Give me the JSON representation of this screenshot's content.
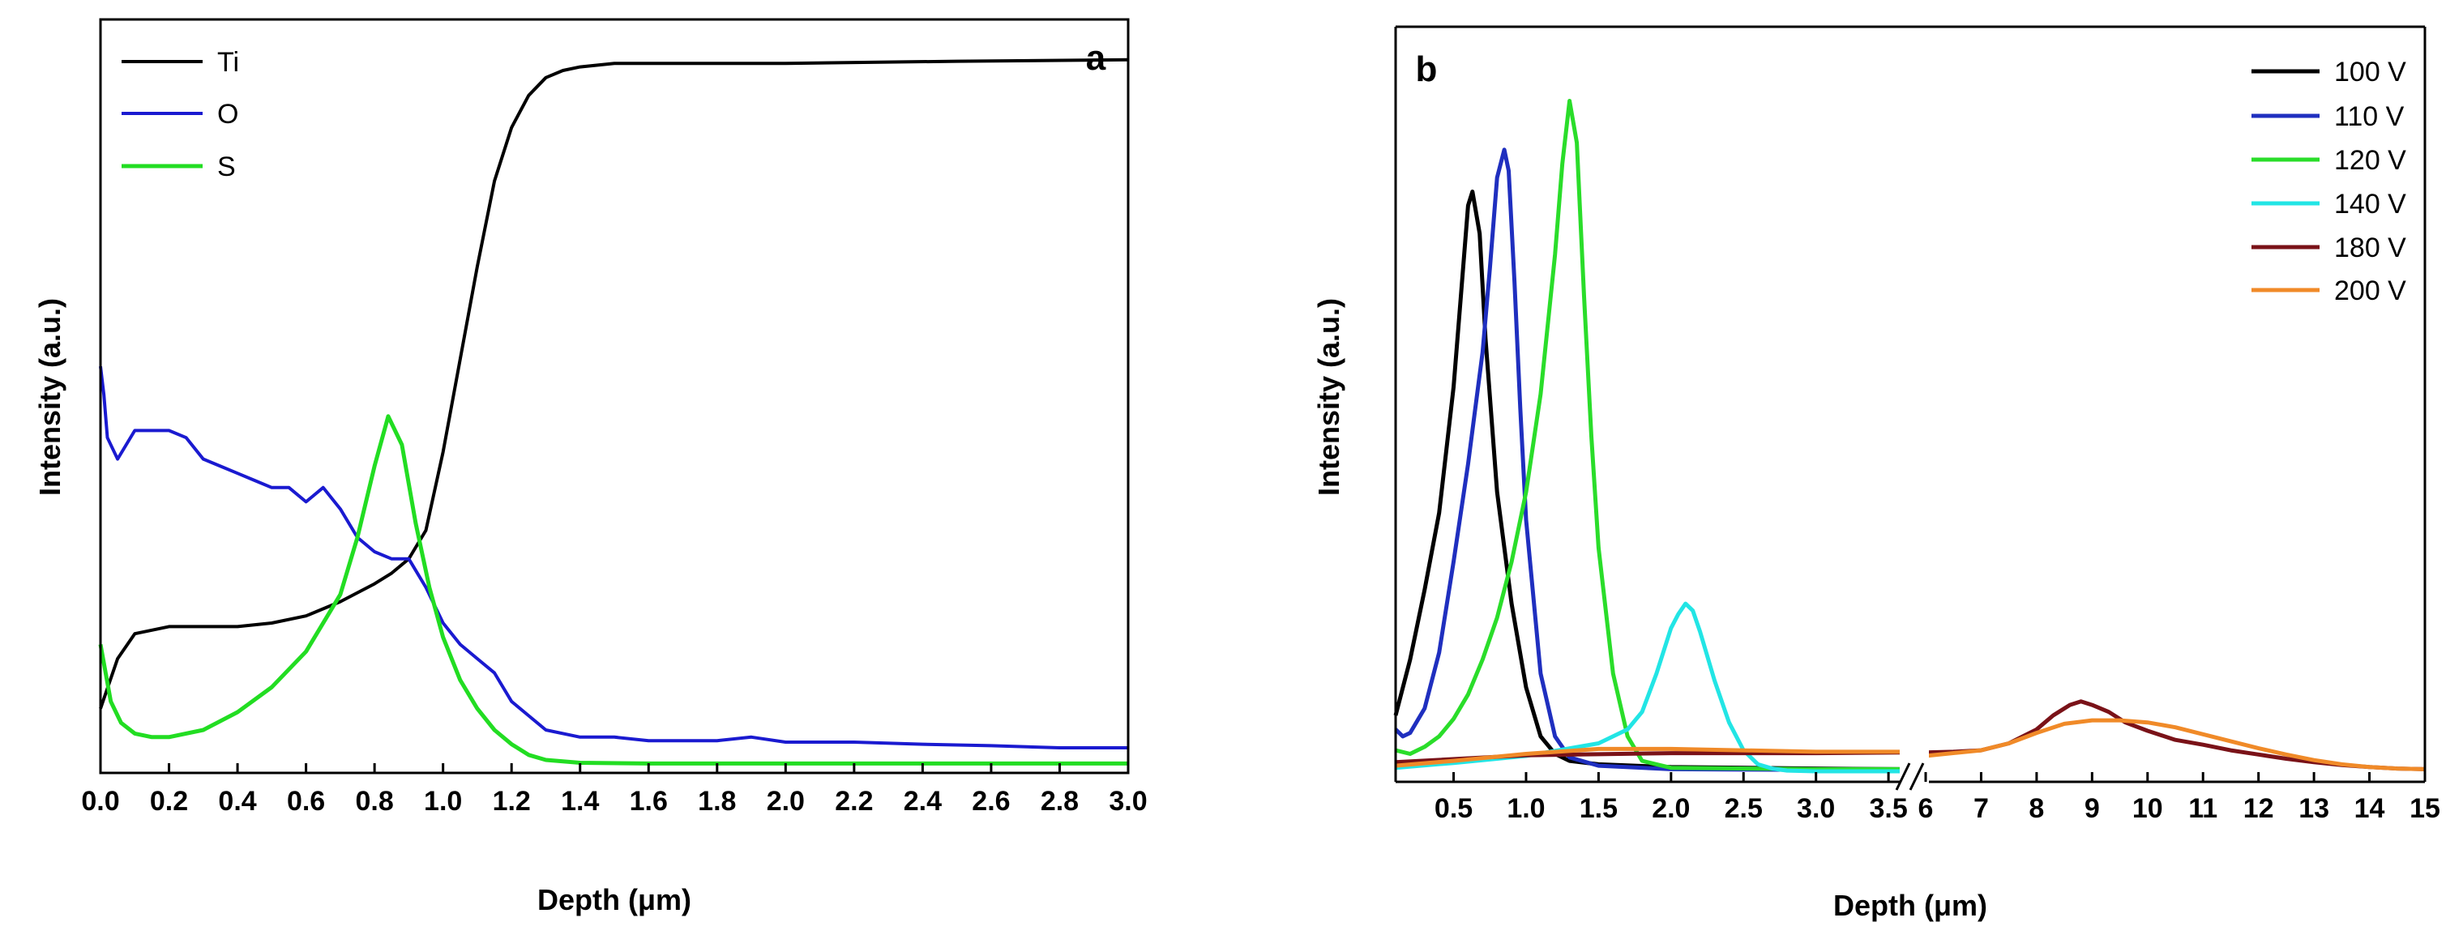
{
  "chart_data": [
    {
      "type": "line",
      "panel_label": "a",
      "xlabel": "Depth (μm)",
      "ylabel": "Intensity (a.u.)",
      "xlim": [
        0.0,
        3.0
      ],
      "ylim": [
        0,
        100
      ],
      "xticks": [
        "0.0",
        "0.2",
        "0.4",
        "0.6",
        "0.8",
        "1.0",
        "1.2",
        "1.4",
        "1.6",
        "1.8",
        "2.0",
        "2.2",
        "2.4",
        "2.6",
        "2.8",
        "3.0"
      ],
      "legend": [
        "Ti",
        "O",
        "S"
      ],
      "legend_position": "top-left",
      "series": [
        {
          "name": "Ti",
          "color": "#000000",
          "x": [
            0.0,
            0.05,
            0.1,
            0.2,
            0.3,
            0.4,
            0.5,
            0.6,
            0.7,
            0.8,
            0.85,
            0.9,
            0.95,
            1.0,
            1.05,
            1.1,
            1.15,
            1.2,
            1.25,
            1.3,
            1.35,
            1.4,
            1.5,
            1.6,
            2.0,
            2.5,
            3.0
          ],
          "y": [
            8,
            15,
            18.5,
            19.5,
            19.5,
            19.5,
            20,
            21,
            23,
            25.5,
            27,
            29,
            33,
            44,
            57,
            70,
            82,
            89.5,
            94,
            96.5,
            97.5,
            98,
            98.5,
            98.5,
            98.5,
            98.8,
            99
          ]
        },
        {
          "name": "O",
          "color": "#1a1ad0",
          "x": [
            0.0,
            0.01,
            0.02,
            0.05,
            0.1,
            0.15,
            0.2,
            0.25,
            0.3,
            0.35,
            0.4,
            0.45,
            0.5,
            0.55,
            0.6,
            0.65,
            0.7,
            0.75,
            0.8,
            0.85,
            0.9,
            0.95,
            1.0,
            1.05,
            1.1,
            1.15,
            1.2,
            1.25,
            1.3,
            1.4,
            1.5,
            1.6,
            1.7,
            1.8,
            1.9,
            2.0,
            2.2,
            2.4,
            2.6,
            2.8,
            3.0
          ],
          "y": [
            56,
            52,
            46,
            43,
            47,
            47,
            47,
            46,
            43,
            42,
            41,
            40,
            39,
            39,
            37,
            39,
            36,
            32,
            30,
            29,
            29,
            25,
            20,
            17,
            15,
            13,
            9,
            7,
            5,
            4,
            4,
            3.5,
            3.5,
            3.5,
            4,
            3.3,
            3.3,
            3,
            2.8,
            2.5,
            2.5
          ]
        },
        {
          "name": "S",
          "color": "#22dd22",
          "x": [
            0.0,
            0.03,
            0.06,
            0.1,
            0.15,
            0.2,
            0.3,
            0.4,
            0.5,
            0.6,
            0.7,
            0.75,
            0.8,
            0.84,
            0.88,
            0.92,
            0.96,
            1.0,
            1.05,
            1.1,
            1.15,
            1.2,
            1.25,
            1.3,
            1.4,
            1.6,
            2.0,
            2.5,
            3.0
          ],
          "y": [
            17,
            9,
            6,
            4.5,
            4,
            4,
            5,
            7.5,
            11,
            16,
            24,
            32,
            42,
            49,
            45,
            34,
            25,
            18,
            12,
            8,
            5,
            3,
            1.5,
            0.8,
            0.4,
            0.3,
            0.3,
            0.3,
            0.3
          ]
        }
      ]
    },
    {
      "type": "line",
      "panel_label": "b",
      "xlabel": "Depth (μm)",
      "ylabel": "Intensity (a.u.)",
      "x_axis_break": "between 3.5 and 6",
      "xlim_left": [
        0.1,
        3.6
      ],
      "xlim_right": [
        6,
        15
      ],
      "ylim": [
        0,
        100
      ],
      "xticks_left": [
        "0.5",
        "1.0",
        "1.5",
        "2.0",
        "2.5",
        "3.0",
        "3.5"
      ],
      "xticks_right": [
        "6",
        "7",
        "8",
        "9",
        "10",
        "11",
        "12",
        "13",
        "14",
        "15"
      ],
      "legend": [
        "100 V",
        "110 V",
        "120 V",
        "140 V",
        "180 V",
        "200 V"
      ],
      "legend_position": "top-right",
      "series": [
        {
          "name": "100 V",
          "color": "#000000",
          "x": [
            0.1,
            0.2,
            0.3,
            0.4,
            0.5,
            0.55,
            0.6,
            0.63,
            0.68,
            0.72,
            0.8,
            0.9,
            1.0,
            1.1,
            1.2,
            1.3,
            1.5,
            2.0,
            3.0,
            3.6
          ],
          "y": [
            8,
            16,
            26,
            37,
            55,
            68,
            81,
            83,
            77,
            62,
            40,
            24,
            12,
            5,
            2.5,
            1.5,
            1,
            0.6,
            0.4,
            0.3
          ]
        },
        {
          "name": "110 V",
          "color": "#1f2fbf",
          "x": [
            0.1,
            0.15,
            0.2,
            0.3,
            0.4,
            0.5,
            0.6,
            0.7,
            0.75,
            0.8,
            0.85,
            0.88,
            0.92,
            0.96,
            1.0,
            1.1,
            1.2,
            1.3,
            1.5,
            2.0,
            3.0,
            3.6
          ],
          "y": [
            6,
            5,
            5.5,
            9,
            17,
            30,
            44,
            60,
            72,
            85,
            89,
            86,
            70,
            52,
            36,
            14,
            5,
            2,
            0.8,
            0.3,
            0.2,
            0.2
          ]
        },
        {
          "name": "120 V",
          "color": "#2add2a",
          "x": [
            0.1,
            0.2,
            0.3,
            0.4,
            0.5,
            0.6,
            0.7,
            0.8,
            0.9,
            1.0,
            1.1,
            1.2,
            1.25,
            1.3,
            1.35,
            1.4,
            1.45,
            1.5,
            1.6,
            1.7,
            1.8,
            2.0,
            3.0,
            3.6
          ],
          "y": [
            3,
            2.5,
            3.5,
            5,
            7.5,
            11,
            16,
            22,
            30,
            40,
            54,
            74,
            87,
            96,
            90,
            68,
            48,
            32,
            14,
            5,
            1.5,
            0.5,
            0.3,
            0.3
          ]
        },
        {
          "name": "140 V",
          "color": "#22e5e5",
          "x": [
            0.1,
            0.5,
            1.0,
            1.5,
            1.7,
            1.8,
            1.9,
            2.0,
            2.05,
            2.1,
            2.15,
            2.2,
            2.3,
            2.4,
            2.5,
            2.6,
            2.7,
            2.8,
            3.0,
            3.3,
            3.6
          ],
          "y": [
            0.5,
            1.2,
            2.2,
            4,
            6,
            8.5,
            14,
            20.5,
            22.5,
            24,
            23,
            20,
            13,
            7,
            3,
            1,
            0.4,
            0.1,
            0,
            0,
            0
          ]
        },
        {
          "name": "180 V",
          "color": "#7a1218",
          "x": [
            0.1,
            1.0,
            2.0,
            3.0,
            3.6,
            6,
            6.5,
            7,
            7.5,
            8,
            8.3,
            8.6,
            8.8,
            9,
            9.3,
            9.6,
            10,
            10.5,
            11,
            11.5,
            12,
            12.5,
            13,
            13.5,
            14,
            14.5,
            15
          ],
          "y": [
            1.3,
            2.3,
            2.6,
            2.6,
            2.7,
            2.7,
            2.8,
            3,
            4,
            6,
            8,
            9.5,
            10,
            9.5,
            8.5,
            7,
            5.8,
            4.5,
            3.8,
            3,
            2.4,
            1.8,
            1.3,
            0.9,
            0.6,
            0.4,
            0.3
          ]
        },
        {
          "name": "200 V",
          "color": "#f08a28",
          "x": [
            0.1,
            0.5,
            1.0,
            1.5,
            2.0,
            3.0,
            3.6,
            6,
            7,
            7.5,
            8,
            8.5,
            9,
            9.5,
            10,
            10.5,
            11,
            11.5,
            12,
            12.5,
            13,
            13.5,
            14,
            14.5,
            15
          ],
          "y": [
            0.8,
            1.5,
            2.5,
            3.2,
            3.2,
            2.8,
            2.8,
            2.2,
            3,
            4,
            5.5,
            6.8,
            7.3,
            7.3,
            7,
            6.3,
            5.3,
            4.3,
            3.3,
            2.4,
            1.6,
            1,
            0.6,
            0.4,
            0.3
          ]
        }
      ]
    }
  ]
}
